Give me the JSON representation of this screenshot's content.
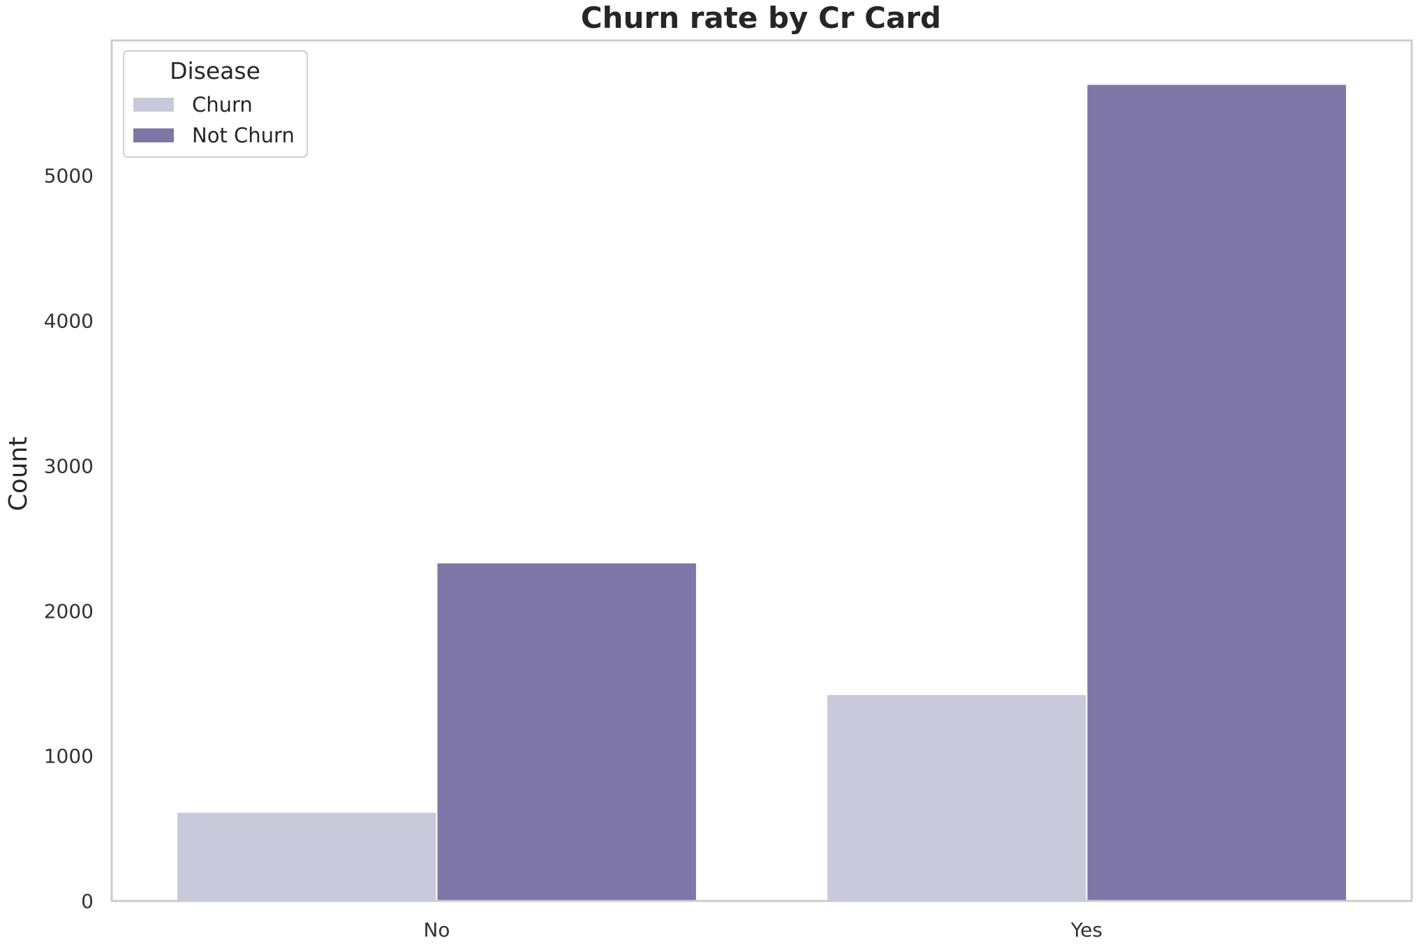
{
  "chart_data": {
    "type": "bar",
    "title": "Churn rate by Cr Card",
    "xlabel": "",
    "ylabel": "Count",
    "categories": [
      "No",
      "Yes"
    ],
    "series": [
      {
        "name": "Churn",
        "values": [
          613,
          1424
        ],
        "color": "#c9c9dc"
      },
      {
        "name": "Not Churn",
        "values": [
          2332,
          5631
        ],
        "color": "#7e76a6"
      }
    ],
    "ylim": [
      0,
      5932
    ],
    "yticks": [
      0,
      1000,
      2000,
      3000,
      4000,
      5000
    ],
    "grid": false,
    "legend": {
      "title": "Disease",
      "position": "top-left"
    }
  }
}
